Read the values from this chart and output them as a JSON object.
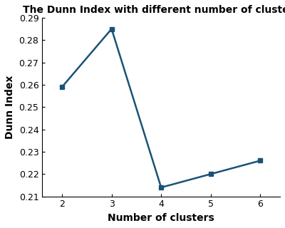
{
  "x": [
    2,
    3,
    4,
    5,
    6
  ],
  "y": [
    0.259,
    0.285,
    0.214,
    0.22,
    0.226
  ],
  "title": "The Dunn Index with different number of clusters",
  "xlabel": "Number of clusters",
  "ylabel": "Dunn Index",
  "xlim": [
    1.6,
    6.4
  ],
  "ylim": [
    0.21,
    0.29
  ],
  "xticks": [
    2,
    3,
    4,
    5,
    6
  ],
  "yticks": [
    0.21,
    0.22,
    0.23,
    0.24,
    0.25,
    0.26,
    0.27,
    0.28,
    0.29
  ],
  "line_color": "#1a5276",
  "marker": "s",
  "marker_size": 5,
  "line_width": 1.8,
  "title_fontsize": 10,
  "label_fontsize": 10,
  "tick_fontsize": 9,
  "background_color": "#ffffff"
}
